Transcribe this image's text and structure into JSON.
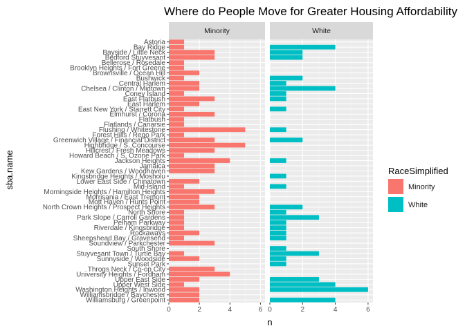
{
  "chart_data": {
    "type": "bar",
    "orientation": "horizontal",
    "faceted": true,
    "title": "Where do People Move for Greater Housing Affordability",
    "xlabel": "n",
    "ylabel": "sba.name",
    "xlim": [
      0,
      6.3
    ],
    "x_ticks": [
      "0",
      "2",
      "4",
      "6"
    ],
    "grid": true,
    "legend_title": "RaceSimplified",
    "legend_position": "right",
    "categories": [
      "Williamsburg / Greenpoint",
      "Williamsbridge / Baychester",
      "Washington Heights / Inwood",
      "Upper West Side",
      "Upper East Side",
      "University Heights / Fordham",
      "Throgs Neck / Co-op City",
      "Sunset Park",
      "Sunnyside / Woodside",
      "Stuyvesant Town / Turtle Bay",
      "South Shore",
      "Soundview / Parkchester",
      "Sheepshead Bay / Gravesend",
      "Rockaways",
      "Riverdale / Kingsbridge",
      "Pelham Parkway",
      "Park Slope / Carroll Gardens",
      "North Shore",
      "North Crown Heights / Prospect Heights",
      "Mott Haven / Hunts Point",
      "Morrisania / East Tremont",
      "Morningside Heights / Hamilton Heights",
      "Mid-Island",
      "Lower East Side / Chinatown",
      "Kingsbridge Heights / Mosholu",
      "Kew Gardens / Woodhaven",
      "Jamaica",
      "Jackson Heights",
      "Howard Beach / S. Ozone Park",
      "Hillcrest / Fresh Meadows",
      "Highbridge / S. Concourse",
      "Greenwich Village / Financial District",
      "Forest Hills / Rego Park",
      "Flushing / Whitestone",
      "Flatlands / Canarsie",
      "Flatbush",
      "Elmhurst / Corona",
      "East New York / Starrett City",
      "East Harlem",
      "East Flatbush",
      "Coney Island",
      "Chelsea / Clinton / Midtown",
      "Central Harlem",
      "Bushwick",
      "Brownsville / Ocean Hill",
      "Brooklyn Heights / Fort Greene",
      "Bellerose / Rosedale",
      "Bedford Stuyvesant",
      "Bayside / Little Neck",
      "Bay Ridge",
      "Astoria"
    ],
    "series": [
      {
        "name": "Minority",
        "color": "#F8766D",
        "values": [
          2,
          2,
          2,
          1,
          2,
          4,
          3,
          0,
          2,
          1,
          0,
          3,
          1,
          2,
          1,
          1,
          1,
          1,
          3,
          2,
          2,
          3,
          1,
          2,
          0,
          3,
          3,
          4,
          1,
          3,
          5,
          3,
          1,
          5,
          1,
          1,
          3,
          1,
          2,
          3,
          1,
          2,
          2,
          1,
          2,
          1,
          1,
          3,
          3,
          1,
          1
        ]
      },
      {
        "name": "White",
        "color": "#00BFC4",
        "values": [
          4,
          0,
          6,
          4,
          3,
          0,
          0,
          1,
          1,
          3,
          1,
          0,
          1,
          1,
          1,
          1,
          3,
          1,
          2,
          0,
          0,
          0,
          1,
          0,
          1,
          0,
          0,
          1,
          0,
          0,
          0,
          2,
          0,
          1,
          0,
          0,
          0,
          1,
          0,
          1,
          1,
          4,
          1,
          2,
          0,
          0,
          0,
          2,
          2,
          4,
          0
        ]
      }
    ]
  }
}
